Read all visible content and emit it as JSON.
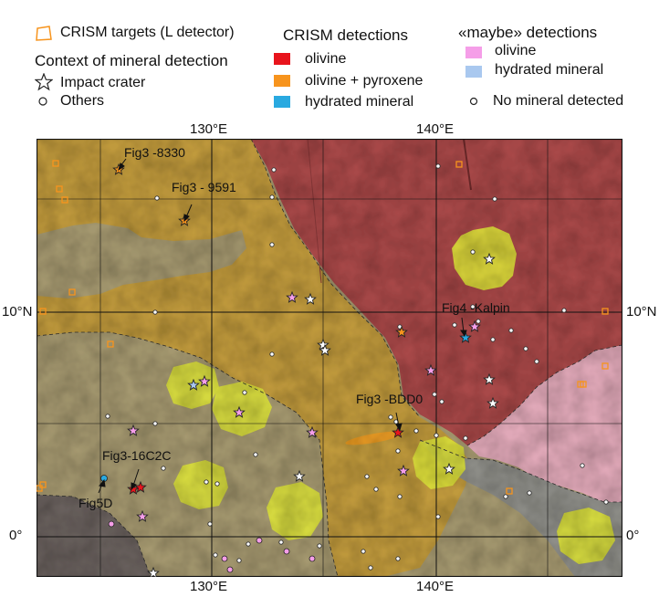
{
  "legend": {
    "crism_targets": "CRISM targets (L detector)",
    "context_title": "Context of mineral detection",
    "impact_crater": "Impact crater",
    "others": "Others",
    "detections_title": "CRISM detections",
    "det_olivine": "olivine",
    "det_olivine_pyroxene": "olivine  + pyroxene",
    "det_hydrated": "hydrated mineral",
    "maybe_title": "«maybe» detections",
    "maybe_olivine": "olivine",
    "maybe_hydrated": "hydrated mineral",
    "no_mineral": "No mineral detected"
  },
  "colors": {
    "olivine": "#e8141c",
    "olivine_pyroxene": "#f7941d",
    "hydrated": "#29a9e0",
    "maybe_olivine": "#f59ee8",
    "maybe_hydrated": "#a9c8ef",
    "target_outline": "#f7941d",
    "unit_red": "#a8484a",
    "unit_ochre": "#c09a3c",
    "unit_tan": "#a49870",
    "unit_pink": "#e0a8b8",
    "unit_grey": "#8e8e88",
    "unit_dark": "#6a625e",
    "unit_yellow": "#d9df3a"
  },
  "axes": {
    "lon_top": [
      "130°E",
      "140°E"
    ],
    "lon_bottom": [
      "130°E",
      "140°E"
    ],
    "lat_left": [
      "10°N",
      "0°"
    ],
    "lat_right": [
      "10°N",
      "0°"
    ]
  },
  "annotations": {
    "fig3_8330": "Fig3 -8330",
    "fig3_9591": "Fig3 - 9591",
    "fig4_kalpin": "Fig4 -Kalpin",
    "fig3_bdd0": "Fig3 -BDD0",
    "fig3_16c2c": "Fig3-16C2C",
    "fig5d": "Fig5D"
  }
}
